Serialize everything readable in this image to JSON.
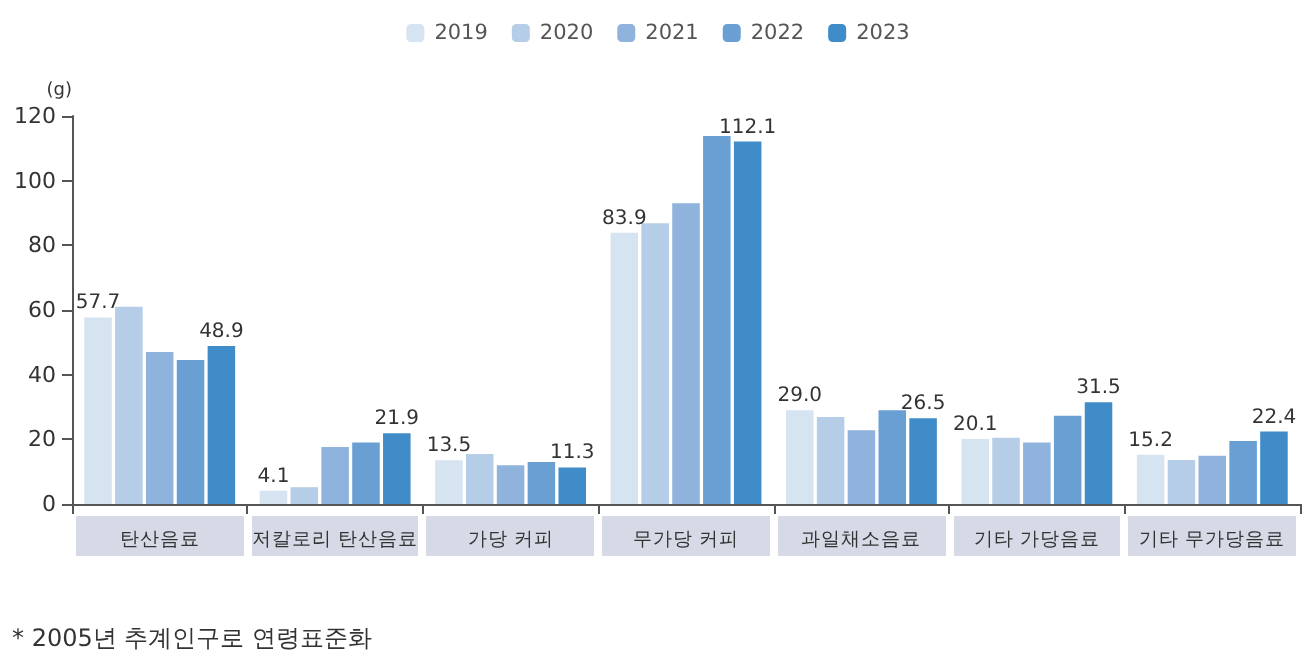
{
  "chart_data": {
    "type": "bar",
    "ylabel": "(g)",
    "categories": [
      "탄산음료",
      "저칼로리 탄산음료",
      "가당 커피",
      "무가당 커피",
      "과일채소음료",
      "기타 가당음료",
      "기타 무가당음료"
    ],
    "series": [
      {
        "name": "2019",
        "color": "#d6e3f0",
        "values": [
          57.7,
          4.1,
          13.5,
          83.9,
          29.0,
          20.1,
          15.2
        ],
        "value_labels": [
          "57.7",
          "4.1",
          "13.5",
          "83.9",
          "29.0",
          "20.1",
          "15.2"
        ]
      },
      {
        "name": "2020",
        "color": "#b5cde6",
        "values": [
          61.0,
          5.2,
          15.5,
          86.8,
          26.9,
          20.5,
          13.6
        ]
      },
      {
        "name": "2021",
        "color": "#8fb3dc",
        "values": [
          47.0,
          17.6,
          12.0,
          93.0,
          22.8,
          19.0,
          14.9
        ]
      },
      {
        "name": "2022",
        "color": "#6a9fd4",
        "values": [
          44.5,
          19.0,
          13.0,
          113.8,
          29.0,
          27.3,
          19.5
        ]
      },
      {
        "name": "2023",
        "color": "#3f8cc8",
        "values": [
          48.9,
          21.9,
          11.3,
          112.1,
          26.5,
          31.5,
          22.4
        ],
        "value_labels": [
          "48.9",
          "21.9",
          "11.3",
          "112.1",
          "26.5",
          "31.5",
          "22.4"
        ]
      }
    ],
    "ylim": [
      0,
      120
    ],
    "yticks": [
      0,
      20,
      40,
      60,
      80,
      100,
      120
    ],
    "grid": false,
    "legend": "top",
    "annotations": [
      "* 2005년 추계인구로 연령표준화"
    ]
  }
}
